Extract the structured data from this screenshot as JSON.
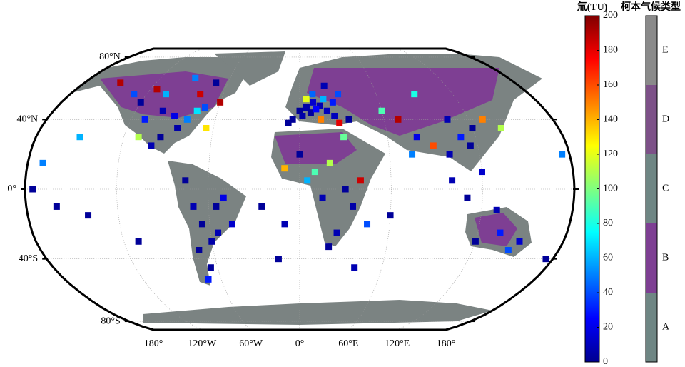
{
  "map": {
    "lat_ticks": [
      {
        "value": 80,
        "label": "80°N"
      },
      {
        "value": 40,
        "label": "40°N"
      },
      {
        "value": 0,
        "label": "0°"
      },
      {
        "value": -40,
        "label": "40°S"
      },
      {
        "value": -80,
        "label": "80°S"
      }
    ],
    "lon_ticks": [
      {
        "value": -180,
        "label": "180°"
      },
      {
        "value": -120,
        "label": "120°W"
      },
      {
        "value": -60,
        "label": "60°W"
      },
      {
        "value": 0,
        "label": "0°"
      },
      {
        "value": 60,
        "label": "60°E"
      },
      {
        "value": 120,
        "label": "120°E"
      },
      {
        "value": 180,
        "label": "180°"
      }
    ],
    "points": {
      "lon": [
        0,
        5,
        10,
        15,
        -5,
        20,
        25,
        30,
        10,
        20,
        15,
        2,
        -8,
        8,
        12,
        25,
        35,
        28,
        18,
        5,
        -150,
        -120,
        -110,
        -100,
        -90,
        -80,
        -75,
        -85,
        -95,
        -105,
        -115,
        -78,
        -70,
        -100,
        -110,
        -65,
        -90,
        -60,
        -130,
        -70,
        -75,
        -70,
        -65,
        -60,
        -55,
        -45,
        -70,
        -65,
        -70,
        -55,
        -50,
        -10,
        0,
        10,
        20,
        30,
        35,
        25,
        20,
        40,
        45,
        15,
        5,
        30,
        80,
        90,
        100,
        110,
        120,
        130,
        105,
        115,
        75,
        70,
        60,
        90,
        140,
        100,
        110,
        120,
        -150,
        -170,
        -175,
        -160,
        -140,
        -110,
        -25,
        -10,
        60,
        175,
        -15,
        40,
        135,
        145,
        150,
        120,
        175,
        130
      ],
      "lat": [
        45,
        47,
        50,
        48,
        40,
        45,
        50,
        55,
        55,
        60,
        40,
        42,
        38,
        44,
        46,
        42,
        40,
        38,
        52,
        52,
        62,
        50,
        40,
        45,
        42,
        40,
        45,
        35,
        30,
        55,
        58,
        55,
        47,
        25,
        30,
        35,
        65,
        50,
        55,
        62,
        5,
        -10,
        -20,
        -30,
        -10,
        -20,
        -35,
        -45,
        -52,
        -25,
        -5,
        12,
        20,
        10,
        15,
        0,
        -10,
        -25,
        -33,
        5,
        -20,
        -5,
        5,
        30,
        30,
        25,
        20,
        30,
        35,
        40,
        40,
        25,
        20,
        40,
        45,
        55,
        35,
        5,
        -5,
        10,
        30,
        15,
        0,
        -10,
        -15,
        -30,
        -10,
        -20,
        -15,
        20,
        -40,
        -45,
        -25,
        -35,
        -30,
        -30,
        -40,
        -12
      ],
      "values": [
        5,
        8,
        15,
        10,
        5,
        12,
        30,
        40,
        45,
        10,
        150,
        8,
        5,
        6,
        25,
        12,
        5,
        180,
        60,
        120,
        190,
        5,
        30,
        10,
        20,
        50,
        70,
        8,
        5,
        60,
        190,
        185,
        40,
        10,
        110,
        130,
        50,
        190,
        40,
        5,
        5,
        10,
        5,
        8,
        5,
        15,
        5,
        5,
        30,
        10,
        20,
        140,
        5,
        90,
        110,
        5,
        8,
        10,
        5,
        185,
        40,
        10,
        60,
        95,
        20,
        160,
        10,
        30,
        5,
        150,
        10,
        5,
        50,
        190,
        90,
        80,
        110,
        10,
        5,
        15,
        60,
        50,
        5,
        5,
        5,
        5,
        5,
        10,
        5,
        50,
        5,
        10,
        30,
        40,
        15,
        5,
        5,
        10
      ]
    },
    "colorbar": {
      "title": "氚(TU)",
      "lim": [
        0,
        200
      ],
      "ticks": [
        0,
        20,
        40,
        60,
        80,
        100,
        120,
        140,
        160,
        180,
        200
      ]
    },
    "climate_legend": {
      "title": "柯本气候类型",
      "classes": [
        {
          "label": "A",
          "color": "#6f8684"
        },
        {
          "label": "B",
          "color": "#7e3f93"
        },
        {
          "label": "C",
          "color": "#6f8684"
        },
        {
          "label": "D",
          "color": "#7d5188"
        },
        {
          "label": "E",
          "color": "#8a8a8a"
        }
      ]
    }
  }
}
